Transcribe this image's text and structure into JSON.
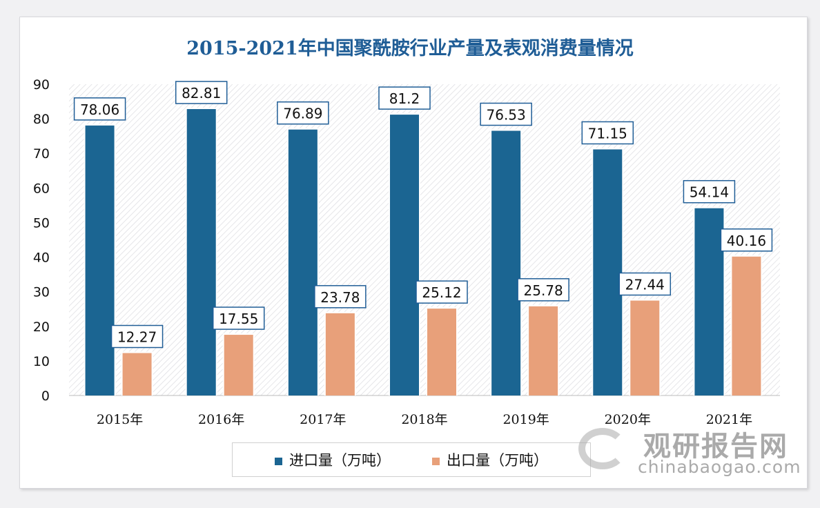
{
  "chart_data": {
    "type": "bar",
    "title": "2015-2021年中国聚酰胺行业产量及表观消费量情况",
    "categories": [
      "2015年",
      "2016年",
      "2017年",
      "2018年",
      "2019年",
      "2020年",
      "2021年"
    ],
    "series": [
      {
        "name": "进口量（万吨）",
        "color": "#1b6592",
        "values": [
          78.06,
          82.81,
          76.89,
          81.2,
          76.53,
          71.15,
          54.14
        ]
      },
      {
        "name": "出口量（万吨）",
        "color": "#e8a07a",
        "values": [
          12.27,
          17.55,
          23.78,
          25.12,
          25.78,
          27.44,
          40.16
        ]
      }
    ],
    "ylim": [
      0,
      90
    ],
    "yticks": [
      0,
      10,
      20,
      30,
      40,
      50,
      60,
      70,
      80,
      90
    ],
    "grid": false,
    "legend": "bottom",
    "data_labels": true
  },
  "watermark": {
    "cn": "观研报告网",
    "en": "chinabaogao.com"
  }
}
